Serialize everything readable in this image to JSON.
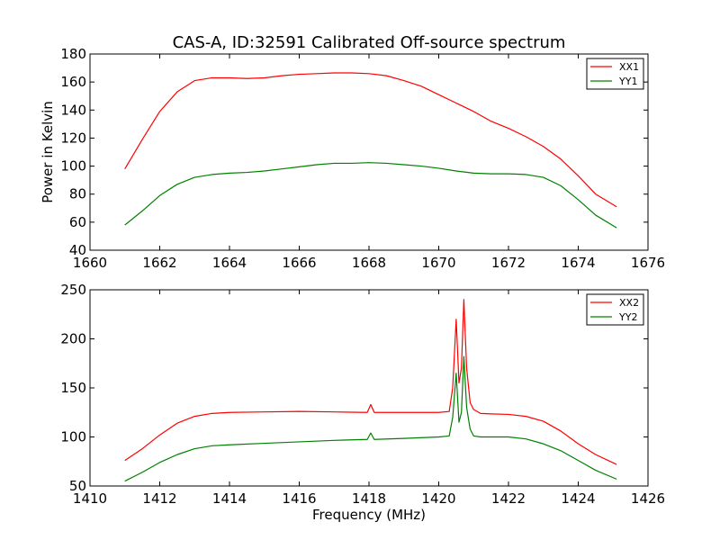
{
  "chart_data": [
    {
      "type": "line",
      "title": "CAS-A, ID:32591 Calibrated Off-source spectrum",
      "xlabel": "",
      "ylabel": "Power in Kelvin",
      "xlim": [
        1660,
        1676
      ],
      "ylim": [
        40,
        180
      ],
      "xticks": [
        "1660",
        "1662",
        "1664",
        "1666",
        "1668",
        "1670",
        "1672",
        "1674",
        "1676"
      ],
      "yticks": [
        "40",
        "60",
        "80",
        "100",
        "120",
        "140",
        "160",
        "180"
      ],
      "legend": "top-right",
      "grid": false,
      "series": [
        {
          "name": "XX1",
          "color": "#ff0000",
          "x": [
            1661.0,
            1661.5,
            1662.0,
            1662.5,
            1663.0,
            1663.5,
            1664.0,
            1664.5,
            1665.0,
            1665.5,
            1666.0,
            1666.5,
            1667.0,
            1667.5,
            1668.0,
            1668.5,
            1669.0,
            1669.5,
            1670.0,
            1670.5,
            1671.0,
            1671.5,
            1672.0,
            1672.5,
            1673.0,
            1673.5,
            1674.0,
            1674.5,
            1675.1
          ],
          "y": [
            98,
            119,
            139,
            153,
            161,
            163,
            163,
            162.5,
            163,
            164.5,
            165.5,
            166,
            166.5,
            166.5,
            166,
            164.5,
            161,
            157,
            151,
            145,
            139,
            132,
            127,
            121,
            114,
            105,
            93,
            80,
            71
          ]
        },
        {
          "name": "YY1",
          "color": "#008000",
          "x": [
            1661.0,
            1661.5,
            1662.0,
            1662.5,
            1663.0,
            1663.5,
            1664.0,
            1664.5,
            1665.0,
            1665.5,
            1666.0,
            1666.5,
            1667.0,
            1667.5,
            1668.0,
            1668.5,
            1669.0,
            1669.5,
            1670.0,
            1670.5,
            1671.0,
            1671.5,
            1672.0,
            1672.5,
            1673.0,
            1673.5,
            1674.0,
            1674.5,
            1675.1
          ],
          "y": [
            58,
            68,
            79,
            87,
            92,
            94,
            95,
            95.5,
            96.5,
            98,
            99.5,
            101,
            102,
            102,
            102.5,
            102,
            101,
            100,
            98.5,
            96.5,
            95,
            94.5,
            94.5,
            94,
            92,
            86,
            76,
            65,
            56
          ]
        }
      ]
    },
    {
      "type": "line",
      "title": "",
      "xlabel": "Frequency (MHz)",
      "ylabel": "",
      "xlim": [
        1410,
        1426
      ],
      "ylim": [
        50,
        250
      ],
      "xticks": [
        "1410",
        "1412",
        "1414",
        "1416",
        "1418",
        "1420",
        "1422",
        "1424",
        "1426"
      ],
      "yticks": [
        "50",
        "100",
        "150",
        "200",
        "250"
      ],
      "legend": "top-right",
      "grid": false,
      "series": [
        {
          "name": "XX2",
          "color": "#ff0000",
          "x": [
            1411.0,
            1411.5,
            1412.0,
            1412.5,
            1413.0,
            1413.5,
            1414.0,
            1415.0,
            1416.0,
            1417.0,
            1417.95,
            1418.05,
            1418.15,
            1419.0,
            1420.0,
            1420.3,
            1420.4,
            1420.5,
            1420.58,
            1420.65,
            1420.72,
            1420.8,
            1420.9,
            1421.0,
            1421.2,
            1421.5,
            1422.0,
            1422.5,
            1423.0,
            1423.5,
            1424.0,
            1424.5,
            1425.1
          ],
          "y": [
            76,
            88,
            102,
            114,
            121,
            124,
            125,
            125.5,
            126,
            125.5,
            125,
            133,
            125,
            125,
            125,
            126,
            150,
            220,
            155,
            170,
            240,
            170,
            135,
            128,
            124,
            123.5,
            123,
            121,
            116,
            106,
            93,
            82,
            72
          ]
        },
        {
          "name": "YY2",
          "color": "#008000",
          "x": [
            1411.0,
            1411.5,
            1412.0,
            1412.5,
            1413.0,
            1413.5,
            1414.0,
            1415.0,
            1416.0,
            1417.0,
            1417.95,
            1418.05,
            1418.15,
            1419.0,
            1420.0,
            1420.3,
            1420.4,
            1420.5,
            1420.58,
            1420.65,
            1420.72,
            1420.8,
            1420.9,
            1421.0,
            1421.2,
            1421.5,
            1422.0,
            1422.5,
            1423.0,
            1423.5,
            1424.0,
            1424.5,
            1425.1
          ],
          "y": [
            55,
            64,
            74,
            82,
            88,
            91,
            92,
            93.5,
            95,
            96.5,
            97.5,
            104,
            97.5,
            98.5,
            100,
            101,
            120,
            165,
            115,
            125,
            182,
            130,
            108,
            101,
            100,
            100,
            100,
            98,
            93,
            86,
            76,
            66,
            57
          ]
        }
      ]
    }
  ]
}
